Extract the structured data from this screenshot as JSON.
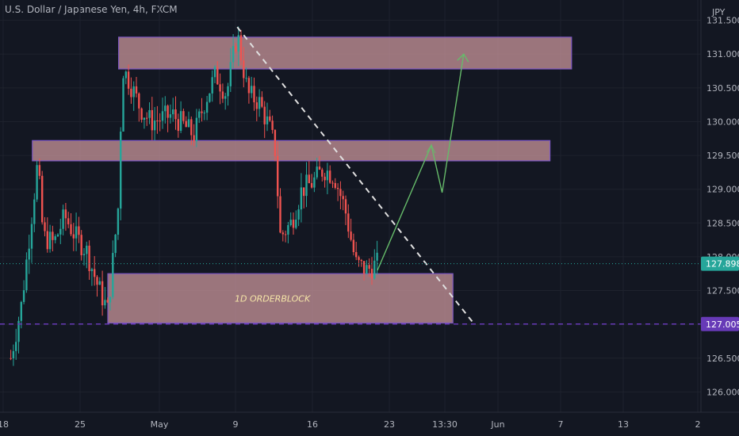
{
  "header": {
    "symbol_title": "U.S. Dollar / Japanese Yen, 4h, FXCM"
  },
  "price_axis": {
    "unit": "JPY",
    "ticks": [
      "131.500",
      "131.000",
      "130.500",
      "130.000",
      "129.500",
      "129.000",
      "128.500",
      "128.000",
      "127.500",
      "127.000",
      "126.500",
      "126.000"
    ]
  },
  "time_axis": {
    "ticks": [
      "18",
      "25",
      "May",
      "9",
      "16",
      "23",
      "13:30",
      "Jun",
      "7",
      "13",
      "2"
    ]
  },
  "colors": {
    "background": "#131722",
    "grid": "#1e222d",
    "up_candle": "#26a69a",
    "down_candle": "#ef5350",
    "zone_fill": "#d09aa0",
    "zone_border": "#7e57c2",
    "trendline": "#e0e0e0",
    "projection": "#66bb6a",
    "last_price_badge": "#26a69a",
    "level_badge": "#673ab7"
  },
  "chart_data": {
    "type": "candlestick",
    "instrument": "U.S. Dollar / Japanese Yen",
    "timeframe": "4h",
    "source": "FXCM",
    "y_unit": "JPY",
    "ylim": [
      125.7,
      131.8
    ],
    "xlim": [
      "2022-04-17",
      "2022-06-21"
    ],
    "x_ticks": [
      "18",
      "25",
      "May",
      "9",
      "16",
      "23",
      "13:30",
      "Jun",
      "7",
      "13",
      "2"
    ],
    "y_ticks": [
      126.0,
      126.5,
      127.0,
      127.5,
      128.0,
      128.5,
      129.0,
      129.5,
      130.0,
      130.5,
      131.0,
      131.5
    ],
    "grid": true,
    "last_price": 127.898,
    "last_price_label": "127.898",
    "level": 127.005,
    "level_label": "127.005",
    "path": [
      [
        "2022-04-18",
        126.5
      ],
      [
        "2022-04-19",
        127.3
      ],
      [
        "2022-04-20",
        128.7
      ],
      [
        "2022-04-20T12",
        129.4
      ],
      [
        "2022-04-21",
        128.3
      ],
      [
        "2022-04-22",
        128.2
      ],
      [
        "2022-04-23",
        128.6
      ],
      [
        "2022-04-24",
        128.3
      ],
      [
        "2022-04-25",
        128.1
      ],
      [
        "2022-04-26",
        127.6
      ],
      [
        "2022-04-27",
        127.2
      ],
      [
        "2022-04-28",
        128.8
      ],
      [
        "2022-04-28T08",
        130.8
      ],
      [
        "2022-04-29",
        130.6
      ],
      [
        "2022-04-30",
        130.2
      ],
      [
        "2022-05-01",
        130.0
      ],
      [
        "2022-05-03",
        130.1
      ],
      [
        "2022-05-05",
        129.8
      ],
      [
        "2022-05-06",
        130.3
      ],
      [
        "2022-05-07",
        130.7
      ],
      [
        "2022-05-08",
        130.4
      ],
      [
        "2022-05-09",
        131.3
      ],
      [
        "2022-05-10",
        130.4
      ],
      [
        "2022-05-11",
        130.3
      ],
      [
        "2022-05-12",
        129.9
      ],
      [
        "2022-05-12T12",
        129.6
      ],
      [
        "2022-05-13",
        128.3
      ],
      [
        "2022-05-14",
        128.5
      ],
      [
        "2022-05-15",
        129.0
      ],
      [
        "2022-05-16",
        129.1
      ],
      [
        "2022-05-17",
        129.3
      ],
      [
        "2022-05-18",
        129.2
      ],
      [
        "2022-05-19",
        128.7
      ],
      [
        "2022-05-20",
        127.9
      ],
      [
        "2022-05-21",
        127.8
      ],
      [
        "2022-05-22",
        127.9
      ]
    ],
    "zones": [
      {
        "y_top": 131.25,
        "y_bottom": 130.78,
        "x_start": "2022-04-28",
        "x_end": "2022-06-09"
      },
      {
        "y_top": 129.72,
        "y_bottom": 129.42,
        "x_start": "2022-04-20",
        "x_end": "2022-06-07"
      },
      {
        "y_top": 127.75,
        "y_bottom": 127.02,
        "x_start": "2022-04-27",
        "x_end": "2022-05-29",
        "label": "1D ORDERBLOCK"
      }
    ],
    "trendline": {
      "from": [
        "2022-05-09",
        131.4
      ],
      "to": [
        "2022-05-31",
        127.0
      ],
      "style": "dashed"
    },
    "projection": [
      [
        "2022-05-22",
        127.8
      ],
      [
        "2022-05-27",
        129.65
      ],
      [
        "2022-05-28",
        128.95
      ],
      [
        "2022-05-30",
        131.0
      ]
    ]
  }
}
